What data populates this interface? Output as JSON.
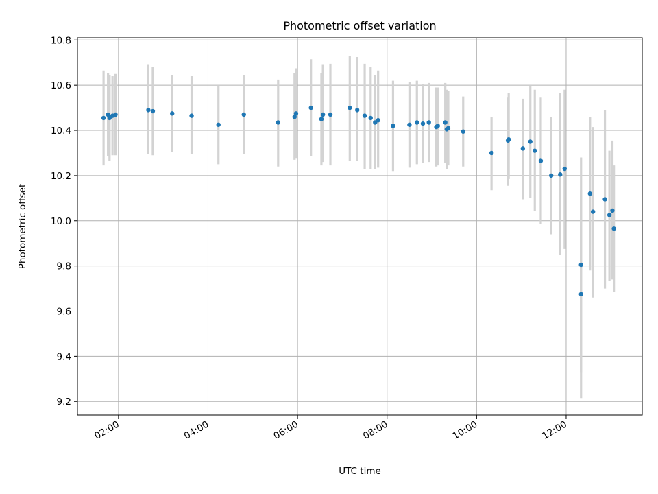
{
  "chart_data": {
    "type": "scatter",
    "title": "Photometric offset variation",
    "xlabel": "UTC time",
    "ylabel": "Photometric offset",
    "x_axis": {
      "type": "time",
      "range": [
        "01:05",
        "13:42"
      ],
      "ticks": [
        {
          "value": "02:00",
          "label": "02:00"
        },
        {
          "value": "04:00",
          "label": "04:00"
        },
        {
          "value": "06:00",
          "label": "06:00"
        },
        {
          "value": "08:00",
          "label": "08:00"
        },
        {
          "value": "10:00",
          "label": "10:00"
        },
        {
          "value": "12:00",
          "label": "12:00"
        }
      ]
    },
    "y_axis": {
      "range": [
        9.14,
        10.81
      ],
      "ticks": [
        {
          "value": 9.2,
          "label": "9.2"
        },
        {
          "value": 9.4,
          "label": "9.4"
        },
        {
          "value": 9.6,
          "label": "9.6"
        },
        {
          "value": 9.8,
          "label": "9.8"
        },
        {
          "value": 10.0,
          "label": "10.0"
        },
        {
          "value": 10.2,
          "label": "10.2"
        },
        {
          "value": 10.4,
          "label": "10.4"
        },
        {
          "value": 10.6,
          "label": "10.6"
        },
        {
          "value": 10.8,
          "label": "10.8"
        }
      ]
    },
    "grid": true,
    "colors": {
      "point": "#1f77b4",
      "errorbar": "#d3d3d3",
      "grid": "#b0b0b0"
    },
    "points": [
      {
        "time": "01:40",
        "y": 10.455,
        "ylo": 10.245,
        "yhi": 10.665
      },
      {
        "time": "01:46",
        "y": 10.47,
        "ylo": 10.285,
        "yhi": 10.655
      },
      {
        "time": "01:48",
        "y": 10.455,
        "ylo": 10.265,
        "yhi": 10.645
      },
      {
        "time": "01:52",
        "y": 10.465,
        "ylo": 10.29,
        "yhi": 10.64
      },
      {
        "time": "01:56",
        "y": 10.47,
        "ylo": 10.29,
        "yhi": 10.65
      },
      {
        "time": "02:40",
        "y": 10.49,
        "ylo": 10.295,
        "yhi": 10.69
      },
      {
        "time": "02:46",
        "y": 10.485,
        "ylo": 10.29,
        "yhi": 10.68
      },
      {
        "time": "03:12",
        "y": 10.475,
        "ylo": 10.305,
        "yhi": 10.645
      },
      {
        "time": "03:38",
        "y": 10.465,
        "ylo": 10.295,
        "yhi": 10.64
      },
      {
        "time": "04:14",
        "y": 10.425,
        "ylo": 10.25,
        "yhi": 10.595
      },
      {
        "time": "04:48",
        "y": 10.47,
        "ylo": 10.295,
        "yhi": 10.645
      },
      {
        "time": "05:34",
        "y": 10.435,
        "ylo": 10.24,
        "yhi": 10.625
      },
      {
        "time": "05:56",
        "y": 10.46,
        "ylo": 10.27,
        "yhi": 10.655
      },
      {
        "time": "05:58",
        "y": 10.475,
        "ylo": 10.275,
        "yhi": 10.675
      },
      {
        "time": "06:18",
        "y": 10.5,
        "ylo": 10.285,
        "yhi": 10.715
      },
      {
        "time": "06:32",
        "y": 10.45,
        "ylo": 10.245,
        "yhi": 10.655
      },
      {
        "time": "06:34",
        "y": 10.47,
        "ylo": 10.26,
        "yhi": 10.69
      },
      {
        "time": "06:44",
        "y": 10.47,
        "ylo": 10.245,
        "yhi": 10.695
      },
      {
        "time": "07:10",
        "y": 10.5,
        "ylo": 10.265,
        "yhi": 10.73
      },
      {
        "time": "07:20",
        "y": 10.49,
        "ylo": 10.265,
        "yhi": 10.725
      },
      {
        "time": "07:30",
        "y": 10.465,
        "ylo": 10.23,
        "yhi": 10.695
      },
      {
        "time": "07:38",
        "y": 10.455,
        "ylo": 10.23,
        "yhi": 10.68
      },
      {
        "time": "07:44",
        "y": 10.435,
        "ylo": 10.23,
        "yhi": 10.645
      },
      {
        "time": "07:48",
        "y": 10.445,
        "ylo": 10.235,
        "yhi": 10.665
      },
      {
        "time": "08:08",
        "y": 10.42,
        "ylo": 10.22,
        "yhi": 10.62
      },
      {
        "time": "08:30",
        "y": 10.425,
        "ylo": 10.235,
        "yhi": 10.615
      },
      {
        "time": "08:40",
        "y": 10.435,
        "ylo": 10.25,
        "yhi": 10.62
      },
      {
        "time": "08:48",
        "y": 10.43,
        "ylo": 10.255,
        "yhi": 10.605
      },
      {
        "time": "08:56",
        "y": 10.435,
        "ylo": 10.26,
        "yhi": 10.61
      },
      {
        "time": "09:06",
        "y": 10.415,
        "ylo": 10.24,
        "yhi": 10.59
      },
      {
        "time": "09:08",
        "y": 10.42,
        "ylo": 10.245,
        "yhi": 10.59
      },
      {
        "time": "09:18",
        "y": 10.435,
        "ylo": 10.255,
        "yhi": 10.61
      },
      {
        "time": "09:20",
        "y": 10.405,
        "ylo": 10.23,
        "yhi": 10.58
      },
      {
        "time": "09:22",
        "y": 10.41,
        "ylo": 10.245,
        "yhi": 10.575
      },
      {
        "time": "09:42",
        "y": 10.395,
        "ylo": 10.24,
        "yhi": 10.55
      },
      {
        "time": "10:20",
        "y": 10.3,
        "ylo": 10.135,
        "yhi": 10.46
      },
      {
        "time": "10:42",
        "y": 10.355,
        "ylo": 10.155,
        "yhi": 10.545
      },
      {
        "time": "10:43",
        "y": 10.36,
        "ylo": 10.185,
        "yhi": 10.565
      },
      {
        "time": "11:02",
        "y": 10.32,
        "ylo": 10.095,
        "yhi": 10.54
      },
      {
        "time": "11:12",
        "y": 10.35,
        "ylo": 10.1,
        "yhi": 10.6
      },
      {
        "time": "11:18",
        "y": 10.31,
        "ylo": 10.045,
        "yhi": 10.58
      },
      {
        "time": "11:26",
        "y": 10.265,
        "ylo": 9.985,
        "yhi": 10.545
      },
      {
        "time": "11:40",
        "y": 10.2,
        "ylo": 9.94,
        "yhi": 10.46
      },
      {
        "time": "11:52",
        "y": 10.205,
        "ylo": 9.85,
        "yhi": 10.565
      },
      {
        "time": "11:58",
        "y": 10.23,
        "ylo": 9.875,
        "yhi": 10.58
      },
      {
        "time": "12:20",
        "y": 9.805,
        "ylo": 9.33,
        "yhi": 10.28
      },
      {
        "time": "12:20",
        "y": 9.675,
        "ylo": 9.215,
        "yhi": 10.135
      },
      {
        "time": "12:32",
        "y": 10.12,
        "ylo": 9.78,
        "yhi": 10.46
      },
      {
        "time": "12:36",
        "y": 10.04,
        "ylo": 9.66,
        "yhi": 10.415
      },
      {
        "time": "12:52",
        "y": 10.095,
        "ylo": 9.7,
        "yhi": 10.49
      },
      {
        "time": "12:58",
        "y": 10.025,
        "ylo": 9.735,
        "yhi": 10.31
      },
      {
        "time": "13:02",
        "y": 10.045,
        "ylo": 9.74,
        "yhi": 10.355
      },
      {
        "time": "13:04",
        "y": 9.965,
        "ylo": 9.685,
        "yhi": 10.245
      }
    ]
  }
}
